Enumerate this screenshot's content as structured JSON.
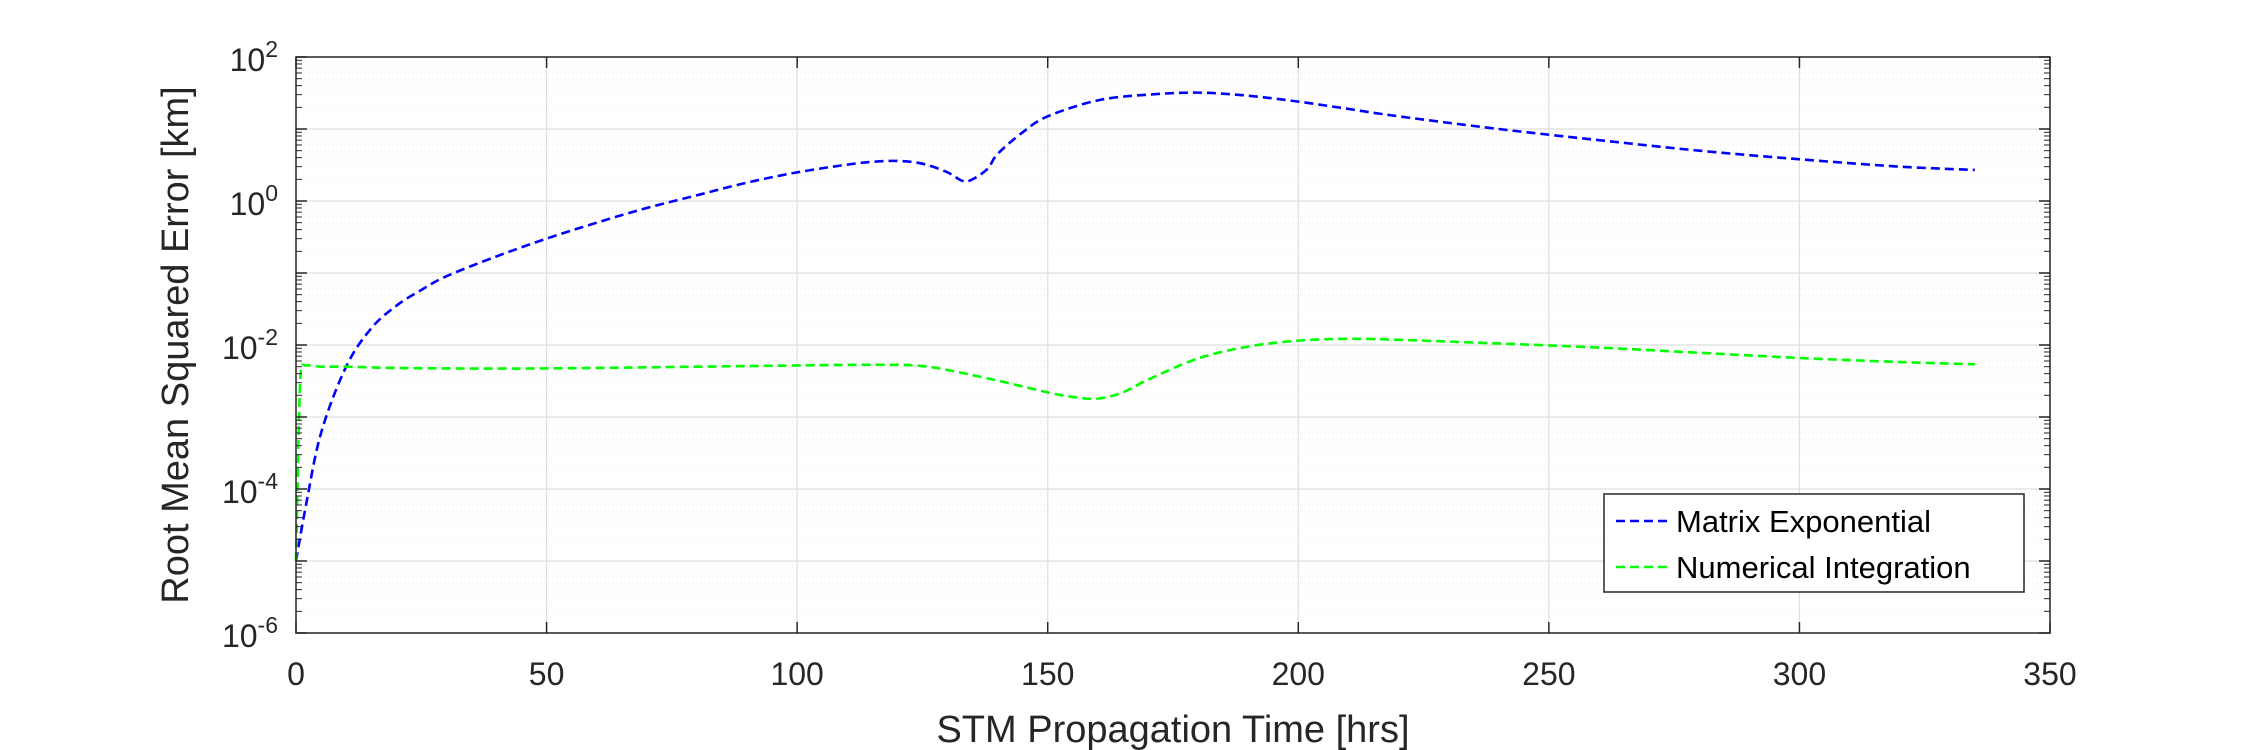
{
  "chart_data": {
    "type": "line",
    "title": "",
    "xlabel": "STM Propagation Time [hrs]",
    "ylabel": "Root Mean Squared Error [km]",
    "xlim": [
      0,
      350
    ],
    "ylim_log10": [
      -6,
      2
    ],
    "y_scale": "log",
    "grid": true,
    "minor_grid": true,
    "legend_position": "bottom-right",
    "x_ticks": [
      "0",
      "50",
      "100",
      "150",
      "200",
      "250",
      "300",
      "350"
    ],
    "y_ticks": [
      {
        "base": "10",
        "exp": "-6"
      },
      {
        "base": "10",
        "exp": "-4"
      },
      {
        "base": "10",
        "exp": "-2"
      },
      {
        "base": "10",
        "exp": "0"
      },
      {
        "base": "10",
        "exp": "2"
      }
    ],
    "series": [
      {
        "name": "Matrix Exponential",
        "color": "#0000ff",
        "line_style": "dashed",
        "x": [
          0,
          2,
          5,
          10,
          15,
          20,
          25,
          30,
          40,
          50,
          60,
          70,
          80,
          90,
          100,
          110,
          115,
          120,
          125,
          130,
          133,
          135,
          138,
          140,
          145,
          150,
          160,
          170,
          180,
          190,
          200,
          210,
          220,
          240,
          260,
          280,
          300,
          320,
          335
        ],
        "y": [
          1e-05,
          6e-05,
          0.0006,
          0.005,
          0.017,
          0.035,
          0.058,
          0.09,
          0.17,
          0.3,
          0.5,
          0.8,
          1.2,
          1.8,
          2.5,
          3.2,
          3.5,
          3.6,
          3.3,
          2.5,
          1.9,
          2.0,
          2.8,
          4.5,
          9.0,
          15.0,
          25.0,
          30.0,
          32.0,
          29.0,
          24.0,
          19.0,
          15.0,
          10.0,
          7.0,
          5.0,
          3.8,
          3.0,
          2.7
        ]
      },
      {
        "name": "Numerical Integration",
        "color": "#00ff00",
        "line_style": "dashed",
        "x": [
          0,
          0.3,
          0.6,
          1,
          2,
          5,
          10,
          20,
          40,
          60,
          80,
          100,
          110,
          120,
          125,
          130,
          140,
          150,
          155,
          160,
          165,
          170,
          180,
          190,
          200,
          210,
          220,
          240,
          260,
          280,
          300,
          320,
          335
        ],
        "y": [
          1e-05,
          0.0001,
          0.001,
          0.0045,
          0.0052,
          0.005,
          0.005,
          0.0048,
          0.0047,
          0.0048,
          0.005,
          0.0052,
          0.0053,
          0.0053,
          0.0051,
          0.0045,
          0.0032,
          0.0022,
          0.0019,
          0.0018,
          0.0022,
          0.0033,
          0.0065,
          0.0095,
          0.0115,
          0.0122,
          0.0118,
          0.0105,
          0.0092,
          0.0078,
          0.0066,
          0.0058,
          0.0054
        ]
      }
    ]
  }
}
